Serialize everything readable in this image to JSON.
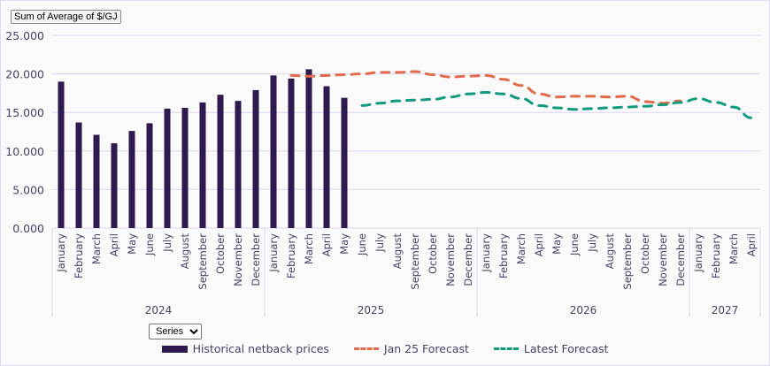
{
  "field_button": "Sum of Average of $/GJ",
  "series_select": {
    "value": "Series",
    "options": [
      "Series"
    ]
  },
  "colors": {
    "historical": "#2e1a4f",
    "jan25": "#e2694a",
    "latest": "#0f9a7e",
    "grid": "#ddd4f0",
    "text": "#4a3f66"
  },
  "chart_data": {
    "type": "bar",
    "title": "",
    "ylabel": "Sum of Average of $/GJ",
    "ylim": [
      0,
      25
    ],
    "yticks": [
      "0.000",
      "5.000",
      "10.000",
      "15.000",
      "20.000",
      "25.000"
    ],
    "ytick_values": [
      0,
      5,
      10,
      15,
      20,
      25
    ],
    "grid": true,
    "legend_position": "bottom",
    "years": [
      {
        "label": "2024",
        "months": [
          "January",
          "February",
          "March",
          "April",
          "May",
          "June",
          "July",
          "August",
          "September",
          "October",
          "November",
          "December"
        ]
      },
      {
        "label": "2025",
        "months": [
          "January",
          "February",
          "March",
          "April",
          "May",
          "June",
          "July",
          "August",
          "September",
          "October",
          "November",
          "December"
        ]
      },
      {
        "label": "2026",
        "months": [
          "January",
          "February",
          "March",
          "April",
          "May",
          "June",
          "July",
          "August",
          "September",
          "October",
          "November",
          "December"
        ]
      },
      {
        "label": "2027",
        "months": [
          "January",
          "February",
          "March",
          "April"
        ]
      }
    ],
    "series": [
      {
        "name": "Historical netback prices",
        "kind": "bar",
        "start_index": 0,
        "values": [
          19.0,
          13.7,
          12.1,
          11.0,
          12.6,
          13.6,
          15.5,
          15.6,
          16.3,
          17.3,
          16.5,
          17.9,
          19.8,
          19.4,
          20.6,
          18.4,
          16.9
        ]
      },
      {
        "name": "Jan 25 Forecast",
        "kind": "dashed-line",
        "start_index": 13,
        "values": [
          19.8,
          19.7,
          19.8,
          19.9,
          20.0,
          20.2,
          20.2,
          20.3,
          19.9,
          19.6,
          19.7,
          19.8,
          19.3,
          18.5,
          17.4,
          17.0,
          17.1,
          17.1,
          17.0,
          17.1,
          16.4,
          16.2,
          16.5
        ]
      },
      {
        "name": "Latest Forecast",
        "kind": "dashed-line",
        "start_index": 17,
        "values": [
          15.9,
          16.2,
          16.5,
          16.6,
          16.7,
          17.0,
          17.4,
          17.6,
          17.4,
          16.8,
          15.9,
          15.6,
          15.4,
          15.5,
          15.6,
          15.7,
          15.8,
          16.0,
          16.3,
          16.8,
          16.3,
          15.7,
          14.3
        ]
      }
    ]
  }
}
